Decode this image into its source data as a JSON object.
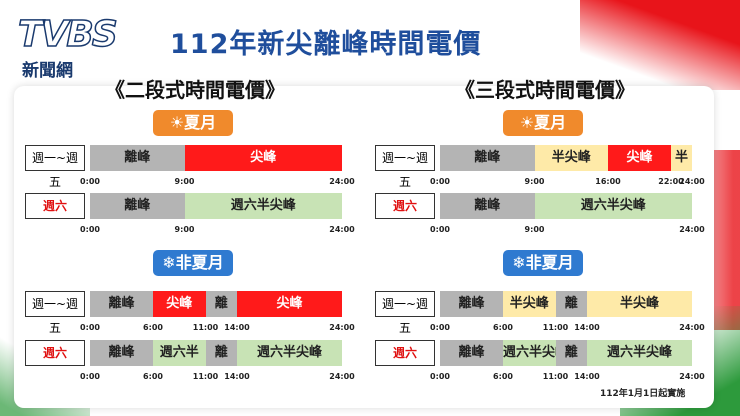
{
  "header": {
    "logo": "TVBS",
    "logo_sub": "新聞網",
    "title": "112年新尖離峰時間電價"
  },
  "panels": [
    {
      "title": "《二段式時間電價》",
      "seasons": [
        {
          "badge": "☀夏月",
          "rows": [
            {
              "label": "週一~週五",
              "segments": [
                {
                  "text": "離峰",
                  "color": "#b4b4b4"
                },
                {
                  "text": "尖峰",
                  "color": "#ff1a1a"
                }
              ],
              "ticks": [
                "0:00",
                "9:00",
                "24:00"
              ]
            },
            {
              "label": "週六",
              "segments": [
                {
                  "text": "離峰",
                  "color": "#b4b4b4"
                },
                {
                  "text": "週六半尖峰",
                  "color": "#c8e3b5"
                }
              ],
              "ticks": [
                "0:00",
                "9:00",
                "24:00"
              ]
            }
          ]
        },
        {
          "badge": "❄非夏月",
          "rows": [
            {
              "label": "週一~週五",
              "segments": [
                {
                  "text": "離峰",
                  "color": "#b4b4b4"
                },
                {
                  "text": "尖峰",
                  "color": "#ff1a1a"
                },
                {
                  "text": "離",
                  "color": "#b4b4b4"
                },
                {
                  "text": "尖峰",
                  "color": "#ff1a1a"
                }
              ],
              "ticks": [
                "0:00",
                "6:00",
                "11:00",
                "14:00",
                "24:00"
              ]
            },
            {
              "label": "週六",
              "segments": [
                {
                  "text": "離峰",
                  "color": "#b4b4b4"
                },
                {
                  "text": "週六半",
                  "color": "#c8e3b5"
                },
                {
                  "text": "離",
                  "color": "#b4b4b4"
                },
                {
                  "text": "週六半尖峰",
                  "color": "#c8e3b5"
                }
              ],
              "ticks": [
                "0:00",
                "6:00",
                "11:00",
                "14:00",
                "24:00"
              ]
            }
          ]
        }
      ]
    },
    {
      "title": "《三段式時間電價》",
      "seasons": [
        {
          "badge": "☀夏月",
          "rows": [
            {
              "label": "週一~週五",
              "segments": [
                {
                  "text": "離峰",
                  "color": "#b4b4b4"
                },
                {
                  "text": "半尖峰",
                  "color": "#feeaa8"
                },
                {
                  "text": "尖峰",
                  "color": "#ff1a1a"
                },
                {
                  "text": "半",
                  "color": "#feeaa8"
                }
              ],
              "ticks": [
                "0:00",
                "9:00",
                "16:00",
                "22:00",
                "24:00"
              ]
            },
            {
              "label": "週六",
              "segments": [
                {
                  "text": "離峰",
                  "color": "#b4b4b4"
                },
                {
                  "text": "週六半尖峰",
                  "color": "#c8e3b5"
                }
              ],
              "ticks": [
                "0:00",
                "9:00",
                "24:00"
              ]
            }
          ]
        },
        {
          "badge": "❄非夏月",
          "rows": [
            {
              "label": "週一~週五",
              "segments": [
                {
                  "text": "離峰",
                  "color": "#b4b4b4"
                },
                {
                  "text": "半尖峰",
                  "color": "#feeaa8"
                },
                {
                  "text": "離",
                  "color": "#b4b4b4"
                },
                {
                  "text": "半尖峰",
                  "color": "#feeaa8"
                }
              ],
              "ticks": [
                "0:00",
                "6:00",
                "11:00",
                "14:00",
                "24:00"
              ]
            },
            {
              "label": "週六",
              "segments": [
                {
                  "text": "離峰",
                  "color": "#b4b4b4"
                },
                {
                  "text": "週六半尖峰",
                  "color": "#c8e3b5"
                },
                {
                  "text": "離",
                  "color": "#b4b4b4"
                },
                {
                  "text": "週六半尖峰",
                  "color": "#c8e3b5"
                }
              ],
              "ticks": [
                "0:00",
                "6:00",
                "11:00",
                "14:00",
                "24:00"
              ]
            }
          ]
        }
      ]
    }
  ],
  "footer": "112年1月1日起實施"
}
